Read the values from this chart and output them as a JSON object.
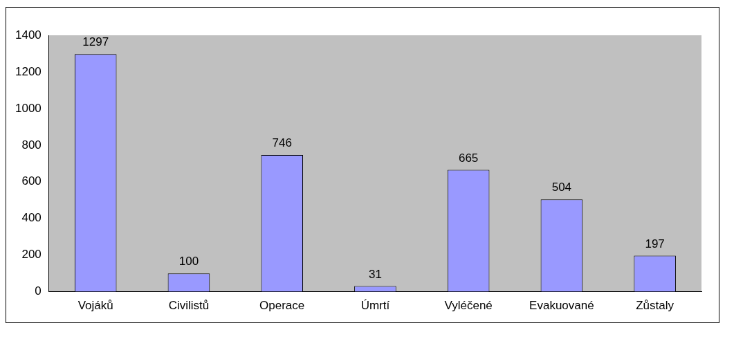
{
  "chart_data": {
    "type": "bar",
    "categories": [
      "Vojáků",
      "Civilistů",
      "Operace",
      "Úmrtí",
      "Vyléčené",
      "Evakuované",
      "Zůstaly"
    ],
    "values": [
      1297,
      100,
      746,
      31,
      665,
      504,
      197
    ],
    "color": "#9999ff",
    "ylim": [
      0,
      1400
    ],
    "yticks": [
      0,
      200,
      400,
      600,
      800,
      1000,
      1200,
      1400
    ],
    "grid": false,
    "legend": false,
    "data_labels": true
  }
}
